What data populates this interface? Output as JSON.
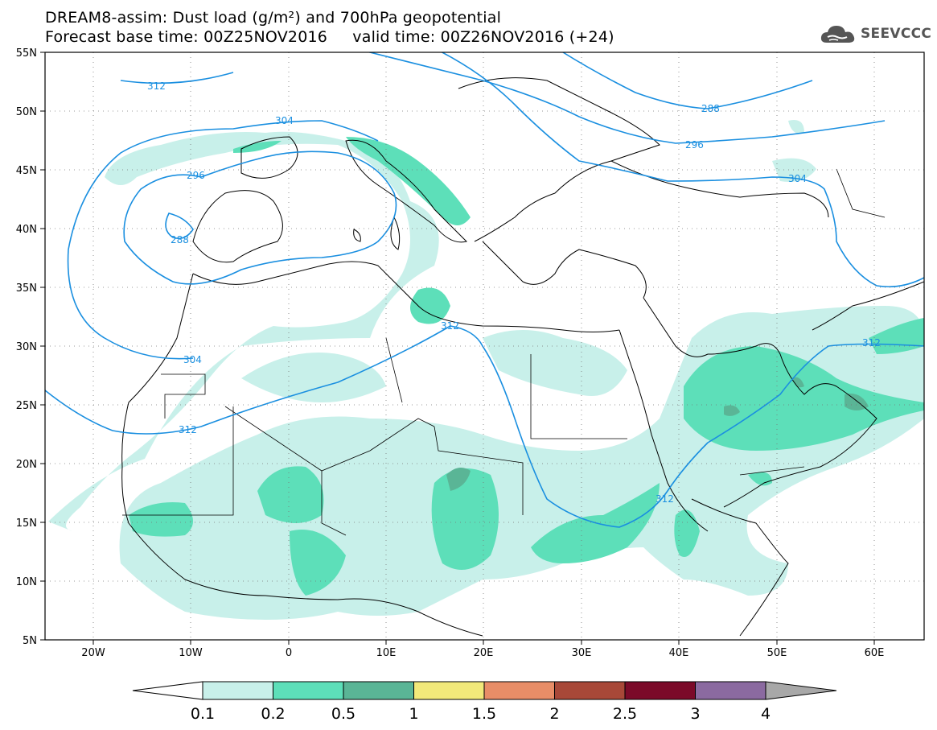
{
  "header": {
    "title_line1": "DREAM8-assim: Dust load (g/m²) and 700hPa geopotential",
    "title_line2": "Forecast base time: 00Z25NOV2016     valid time: 00Z26NOV2016 (+24)"
  },
  "logo": {
    "text": "SEEVCCC",
    "icon": "cloud-icon"
  },
  "map": {
    "lon_range": [
      -25,
      65
    ],
    "lat_range": [
      5,
      55
    ],
    "x_tick_labels": [
      "20W",
      "10W",
      "0",
      "10E",
      "20E",
      "30E",
      "40E",
      "50E",
      "60E"
    ],
    "y_tick_labels": [
      "55N",
      "50N",
      "45N",
      "40N",
      "35N",
      "30N",
      "25N",
      "20N",
      "15N",
      "10N",
      "5N"
    ],
    "grid": "dotted",
    "contour_color": "#1a8fe0",
    "contour_labels": [
      "312",
      "304",
      "296",
      "288",
      "288",
      "296",
      "304",
      "312",
      "312",
      "304",
      "312",
      "312"
    ]
  },
  "colorbar": {
    "levels": [
      "0.1",
      "0.2",
      "0.5",
      "1",
      "1.5",
      "2",
      "2.5",
      "3",
      "4"
    ],
    "colors": [
      "#c8f0ea",
      "#5ddfb9",
      "#5ab596",
      "#f2e97a",
      "#e88d67",
      "#a84838",
      "#7b0a29",
      "#8b6aa0",
      "#a8a8a8"
    ]
  }
}
